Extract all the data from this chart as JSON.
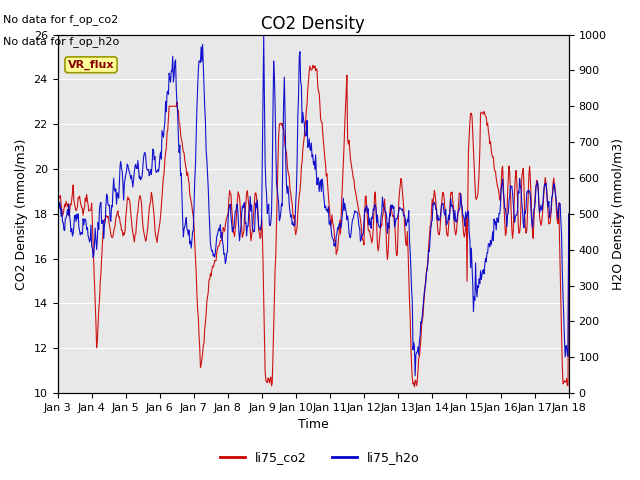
{
  "title": "CO2 Density",
  "xlabel": "Time",
  "ylabel_left": "CO2 Density (mmol/m3)",
  "ylabel_right": "H2O Density (mmol/m3)",
  "ylim_left": [
    10,
    26
  ],
  "ylim_right": [
    0,
    1000
  ],
  "xtick_labels": [
    "Jan 3",
    "Jan 4",
    "Jan 5",
    "Jan 6",
    "Jan 7",
    "Jan 8",
    "Jan 9",
    "Jan 10",
    "Jan 11",
    "Jan 12",
    "Jan 13",
    "Jan 14",
    "Jan 15",
    "Jan 16",
    "Jan 17",
    "Jan 18"
  ],
  "text_no_data1": "No data for f_op_co2",
  "text_no_data2": "No data for f_op_h2o",
  "legend_label1": "li75_co2",
  "legend_label2": "li75_h2o",
  "vr_flux_label": "VR_flux",
  "color_co2": "#cc0000",
  "color_h2o": "#0000cc",
  "color_vr_bg": "#ffff99",
  "color_vr_border": "#999900",
  "background_color": "#e8e8e8",
  "grid_color": "#ffffff",
  "title_fontsize": 12,
  "label_fontsize": 9,
  "tick_fontsize": 8,
  "nodata_fontsize": 8
}
